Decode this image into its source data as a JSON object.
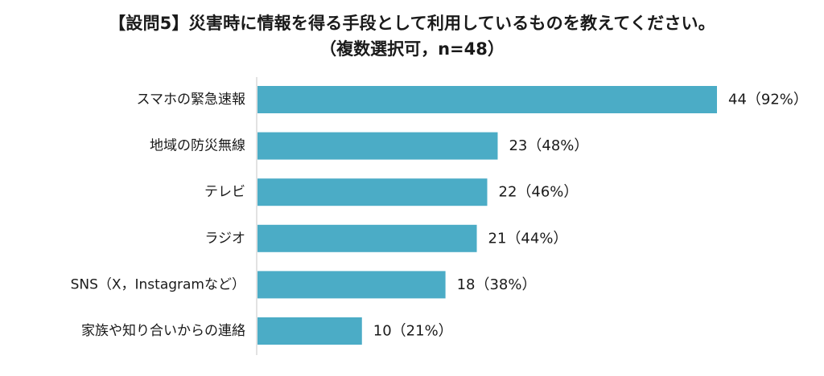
{
  "chart_data": {
    "type": "bar",
    "orientation": "horizontal",
    "title": "【設問5】災害時に情報を得る手段として利用しているものを教えてください。",
    "subtitle": "（複数選択可，n=48）",
    "categories": [
      "スマホの緊急速報",
      "地域の防災無線",
      "テレビ",
      "ラジオ",
      "SNS（X，Instagramなど）",
      "家族や知り合いからの連絡"
    ],
    "values": [
      44,
      23,
      22,
      21,
      18,
      10
    ],
    "value_labels": [
      "44（92%）",
      "23（48%）",
      "22（46%）",
      "21（44%）",
      "18（38%）",
      "10（21%）"
    ],
    "xlim": [
      0,
      44
    ],
    "grid": false,
    "bar_color": "#4bacc6",
    "axis_color": "#d9d9d9"
  }
}
